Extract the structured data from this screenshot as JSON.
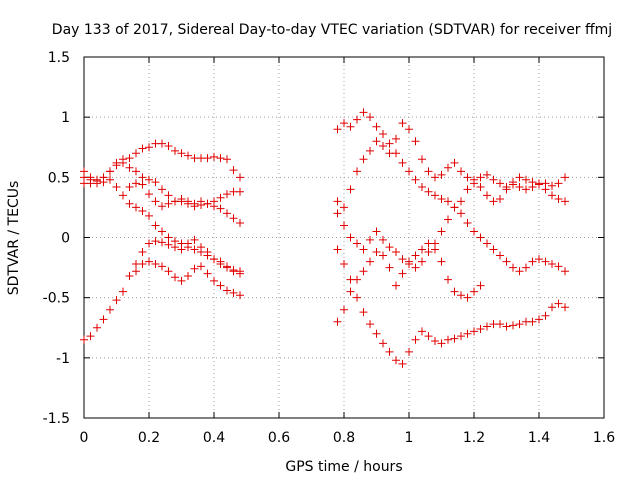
{
  "chart_data": {
    "type": "scatter",
    "title": "Day 133 of 2017, Sidereal Day-to-day VTEC variation (SDTVAR) for receiver ffmj",
    "xlabel": "GPS time / hours",
    "ylabel": "SDTVAR / TECUs",
    "xlim": [
      0,
      1.6
    ],
    "ylim": [
      -1.5,
      1.5
    ],
    "xticks": [
      0,
      0.2,
      0.4,
      0.6,
      0.8,
      1,
      1.2,
      1.4,
      1.6
    ],
    "xtick_labels": [
      "0",
      "0.2",
      "0.4",
      "0.6",
      "0.8",
      "1",
      "1.2",
      "1.4",
      "1.6"
    ],
    "yticks": [
      -1.5,
      -1,
      -0.5,
      0,
      0.5,
      1,
      1.5
    ],
    "ytick_labels": [
      "-1.5",
      "-1",
      "-0.5",
      "0",
      "0.5",
      "1",
      "1.5"
    ],
    "grid": true,
    "marker": "+",
    "color": "#e00000",
    "series": [
      {
        "name": "s1",
        "points": [
          [
            0.0,
            0.55
          ],
          [
            0.02,
            0.5
          ],
          [
            0.04,
            0.48
          ],
          [
            0.06,
            0.5
          ],
          [
            0.08,
            0.55
          ],
          [
            0.1,
            0.6
          ],
          [
            0.12,
            0.62
          ],
          [
            0.14,
            0.58
          ],
          [
            0.16,
            0.55
          ],
          [
            0.18,
            0.5
          ],
          [
            0.2,
            0.48
          ],
          [
            0.22,
            0.46
          ],
          [
            0.24,
            0.4
          ],
          [
            0.26,
            0.35
          ],
          [
            0.28,
            0.3
          ],
          [
            0.3,
            0.3
          ],
          [
            0.32,
            0.28
          ],
          [
            0.34,
            0.26
          ],
          [
            0.36,
            0.27
          ],
          [
            0.38,
            0.28
          ],
          [
            0.4,
            0.3
          ],
          [
            0.42,
            0.33
          ],
          [
            0.44,
            0.36
          ],
          [
            0.46,
            0.38
          ],
          [
            0.48,
            0.38
          ]
        ]
      },
      {
        "name": "s2",
        "points": [
          [
            0.0,
            0.45
          ],
          [
            0.02,
            0.45
          ],
          [
            0.04,
            0.47
          ],
          [
            0.06,
            0.5
          ],
          [
            0.08,
            0.55
          ],
          [
            0.1,
            0.62
          ],
          [
            0.12,
            0.65
          ],
          [
            0.14,
            0.66
          ],
          [
            0.16,
            0.7
          ],
          [
            0.18,
            0.74
          ],
          [
            0.2,
            0.75
          ],
          [
            0.22,
            0.78
          ],
          [
            0.24,
            0.78
          ],
          [
            0.26,
            0.76
          ],
          [
            0.28,
            0.72
          ],
          [
            0.3,
            0.7
          ],
          [
            0.32,
            0.68
          ],
          [
            0.34,
            0.66
          ],
          [
            0.36,
            0.66
          ],
          [
            0.38,
            0.66
          ],
          [
            0.4,
            0.67
          ],
          [
            0.42,
            0.66
          ],
          [
            0.44,
            0.65
          ],
          [
            0.46,
            0.56
          ],
          [
            0.48,
            0.5
          ]
        ]
      },
      {
        "name": "s3",
        "points": [
          [
            0.0,
            0.5
          ],
          [
            0.02,
            0.48
          ],
          [
            0.04,
            0.45
          ],
          [
            0.06,
            0.46
          ],
          [
            0.08,
            0.48
          ],
          [
            0.1,
            0.42
          ],
          [
            0.12,
            0.35
          ],
          [
            0.14,
            0.28
          ],
          [
            0.16,
            0.25
          ],
          [
            0.18,
            0.22
          ],
          [
            0.2,
            0.18
          ],
          [
            0.22,
            0.1
          ],
          [
            0.24,
            0.05
          ],
          [
            0.26,
            0.0
          ],
          [
            0.28,
            -0.03
          ],
          [
            0.3,
            -0.05
          ],
          [
            0.32,
            -0.08
          ],
          [
            0.34,
            -0.1
          ],
          [
            0.36,
            -0.12
          ],
          [
            0.38,
            -0.15
          ],
          [
            0.4,
            -0.18
          ],
          [
            0.42,
            -0.2
          ],
          [
            0.44,
            -0.24
          ],
          [
            0.46,
            -0.28
          ],
          [
            0.48,
            -0.3
          ]
        ]
      },
      {
        "name": "s4",
        "points": [
          [
            0.0,
            -0.85
          ],
          [
            0.02,
            -0.82
          ],
          [
            0.04,
            -0.75
          ],
          [
            0.06,
            -0.68
          ],
          [
            0.08,
            -0.6
          ],
          [
            0.1,
            -0.52
          ],
          [
            0.12,
            -0.45
          ],
          [
            0.14,
            -0.32
          ],
          [
            0.16,
            -0.22
          ],
          [
            0.18,
            -0.12
          ],
          [
            0.2,
            -0.05
          ],
          [
            0.22,
            -0.03
          ],
          [
            0.24,
            -0.04
          ],
          [
            0.26,
            -0.06
          ],
          [
            0.28,
            -0.08
          ],
          [
            0.3,
            -0.1
          ],
          [
            0.32,
            -0.05
          ],
          [
            0.34,
            -0.02
          ],
          [
            0.36,
            -0.08
          ],
          [
            0.38,
            -0.12
          ],
          [
            0.4,
            -0.18
          ],
          [
            0.42,
            -0.22
          ],
          [
            0.44,
            -0.25
          ],
          [
            0.46,
            -0.27
          ],
          [
            0.48,
            -0.28
          ]
        ]
      },
      {
        "name": "s5",
        "points": [
          [
            0.16,
            -0.28
          ],
          [
            0.18,
            -0.22
          ],
          [
            0.2,
            -0.2
          ],
          [
            0.22,
            -0.22
          ],
          [
            0.24,
            -0.24
          ],
          [
            0.26,
            -0.28
          ],
          [
            0.28,
            -0.33
          ],
          [
            0.3,
            -0.36
          ],
          [
            0.32,
            -0.32
          ],
          [
            0.34,
            -0.26
          ],
          [
            0.36,
            -0.24
          ],
          [
            0.38,
            -0.3
          ],
          [
            0.4,
            -0.36
          ],
          [
            0.42,
            -0.4
          ],
          [
            0.44,
            -0.44
          ],
          [
            0.46,
            -0.46
          ],
          [
            0.48,
            -0.48
          ]
        ]
      },
      {
        "name": "s6",
        "points": [
          [
            0.14,
            0.42
          ],
          [
            0.16,
            0.45
          ],
          [
            0.18,
            0.44
          ],
          [
            0.2,
            0.36
          ],
          [
            0.22,
            0.3
          ],
          [
            0.24,
            0.26
          ],
          [
            0.26,
            0.28
          ],
          [
            0.28,
            0.3
          ],
          [
            0.3,
            0.32
          ],
          [
            0.32,
            0.3
          ],
          [
            0.34,
            0.28
          ],
          [
            0.36,
            0.3
          ],
          [
            0.38,
            0.28
          ],
          [
            0.4,
            0.26
          ],
          [
            0.42,
            0.24
          ],
          [
            0.44,
            0.2
          ],
          [
            0.46,
            0.16
          ],
          [
            0.48,
            0.12
          ]
        ]
      },
      {
        "name": "s7",
        "points": [
          [
            0.78,
            0.9
          ],
          [
            0.8,
            0.95
          ],
          [
            0.82,
            0.92
          ],
          [
            0.84,
            0.98
          ],
          [
            0.86,
            1.04
          ],
          [
            0.88,
            1.0
          ],
          [
            0.9,
            0.92
          ],
          [
            0.92,
            0.86
          ],
          [
            0.94,
            0.78
          ],
          [
            0.96,
            0.7
          ],
          [
            0.98,
            0.62
          ],
          [
            1.0,
            0.55
          ],
          [
            1.02,
            0.48
          ],
          [
            1.04,
            0.42
          ],
          [
            1.06,
            0.38
          ],
          [
            1.08,
            0.35
          ],
          [
            1.1,
            0.32
          ],
          [
            1.12,
            0.3
          ],
          [
            1.14,
            0.25
          ],
          [
            1.16,
            0.2
          ],
          [
            1.18,
            0.12
          ],
          [
            1.2,
            0.05
          ],
          [
            1.22,
            0.0
          ],
          [
            1.24,
            -0.05
          ],
          [
            1.26,
            -0.1
          ],
          [
            1.28,
            -0.15
          ],
          [
            1.3,
            -0.2
          ],
          [
            1.32,
            -0.25
          ],
          [
            1.34,
            -0.28
          ],
          [
            1.36,
            -0.25
          ],
          [
            1.38,
            -0.2
          ],
          [
            1.4,
            -0.18
          ],
          [
            1.42,
            -0.2
          ],
          [
            1.44,
            -0.22
          ],
          [
            1.46,
            -0.24
          ],
          [
            1.48,
            -0.28
          ]
        ]
      },
      {
        "name": "s8",
        "points": [
          [
            0.78,
            0.3
          ],
          [
            0.8,
            0.25
          ],
          [
            0.82,
            0.4
          ],
          [
            0.84,
            0.55
          ],
          [
            0.86,
            0.65
          ],
          [
            0.88,
            0.72
          ],
          [
            0.9,
            0.8
          ],
          [
            0.92,
            0.76
          ],
          [
            0.94,
            0.7
          ],
          [
            0.96,
            0.82
          ],
          [
            0.98,
            0.95
          ],
          [
            1.0,
            0.9
          ],
          [
            1.02,
            0.8
          ],
          [
            1.04,
            0.65
          ],
          [
            1.06,
            0.55
          ],
          [
            1.08,
            0.5
          ],
          [
            1.1,
            0.52
          ],
          [
            1.12,
            0.58
          ],
          [
            1.14,
            0.62
          ],
          [
            1.16,
            0.55
          ],
          [
            1.18,
            0.5
          ],
          [
            1.2,
            0.48
          ],
          [
            1.22,
            0.5
          ],
          [
            1.24,
            0.52
          ],
          [
            1.26,
            0.48
          ],
          [
            1.28,
            0.45
          ],
          [
            1.3,
            0.42
          ],
          [
            1.32,
            0.46
          ],
          [
            1.34,
            0.5
          ],
          [
            1.36,
            0.48
          ],
          [
            1.38,
            0.46
          ],
          [
            1.4,
            0.44
          ],
          [
            1.42,
            0.45
          ],
          [
            1.44,
            0.43
          ],
          [
            1.46,
            0.45
          ],
          [
            1.48,
            0.5
          ]
        ]
      },
      {
        "name": "s9",
        "points": [
          [
            0.78,
            -0.1
          ],
          [
            0.8,
            -0.22
          ],
          [
            0.82,
            -0.35
          ],
          [
            0.84,
            -0.5
          ],
          [
            0.86,
            -0.62
          ],
          [
            0.88,
            -0.72
          ],
          [
            0.9,
            -0.8
          ],
          [
            0.92,
            -0.88
          ],
          [
            0.94,
            -0.95
          ],
          [
            0.96,
            -1.02
          ],
          [
            0.98,
            -1.05
          ],
          [
            1.0,
            -0.95
          ],
          [
            1.02,
            -0.85
          ],
          [
            1.04,
            -0.78
          ],
          [
            1.06,
            -0.82
          ],
          [
            1.08,
            -0.86
          ],
          [
            1.1,
            -0.88
          ],
          [
            1.12,
            -0.85
          ],
          [
            1.14,
            -0.84
          ],
          [
            1.16,
            -0.82
          ],
          [
            1.18,
            -0.8
          ],
          [
            1.2,
            -0.78
          ],
          [
            1.22,
            -0.76
          ],
          [
            1.24,
            -0.74
          ],
          [
            1.26,
            -0.72
          ],
          [
            1.28,
            -0.72
          ],
          [
            1.3,
            -0.74
          ],
          [
            1.32,
            -0.73
          ],
          [
            1.34,
            -0.72
          ],
          [
            1.36,
            -0.7
          ],
          [
            1.38,
            -0.7
          ],
          [
            1.4,
            -0.68
          ],
          [
            1.42,
            -0.65
          ],
          [
            1.44,
            -0.58
          ],
          [
            1.46,
            -0.55
          ],
          [
            1.48,
            -0.58
          ]
        ]
      },
      {
        "name": "s10",
        "points": [
          [
            0.78,
            -0.7
          ],
          [
            0.8,
            -0.6
          ],
          [
            0.82,
            -0.45
          ],
          [
            0.84,
            -0.35
          ],
          [
            0.86,
            -0.28
          ],
          [
            0.88,
            -0.2
          ],
          [
            0.9,
            -0.12
          ],
          [
            0.92,
            -0.15
          ],
          [
            0.94,
            -0.25
          ],
          [
            0.96,
            -0.4
          ],
          [
            0.98,
            -0.3
          ],
          [
            1.0,
            -0.2
          ],
          [
            1.02,
            -0.15
          ],
          [
            1.04,
            -0.1
          ],
          [
            1.06,
            -0.05
          ],
          [
            1.08,
            -0.1
          ],
          [
            1.1,
            -0.2
          ],
          [
            1.12,
            -0.35
          ],
          [
            1.14,
            -0.45
          ],
          [
            1.16,
            -0.48
          ],
          [
            1.18,
            -0.5
          ],
          [
            1.2,
            -0.45
          ],
          [
            1.22,
            -0.4
          ]
        ]
      },
      {
        "name": "s11",
        "points": [
          [
            0.78,
            0.2
          ],
          [
            0.8,
            0.1
          ],
          [
            0.82,
            0.0
          ],
          [
            0.84,
            -0.05
          ],
          [
            0.86,
            -0.1
          ],
          [
            0.88,
            -0.02
          ],
          [
            0.9,
            0.05
          ],
          [
            0.92,
            -0.02
          ],
          [
            0.94,
            -0.08
          ],
          [
            0.96,
            -0.12
          ],
          [
            0.98,
            -0.18
          ],
          [
            1.0,
            -0.22
          ],
          [
            1.02,
            -0.25
          ],
          [
            1.04,
            -0.2
          ],
          [
            1.06,
            -0.12
          ],
          [
            1.08,
            -0.05
          ],
          [
            1.1,
            0.05
          ],
          [
            1.12,
            0.15
          ],
          [
            1.14,
            0.25
          ],
          [
            1.16,
            0.3
          ],
          [
            1.18,
            0.4
          ],
          [
            1.2,
            0.45
          ],
          [
            1.22,
            0.42
          ],
          [
            1.24,
            0.35
          ],
          [
            1.26,
            0.3
          ],
          [
            1.28,
            0.32
          ],
          [
            1.3,
            0.4
          ],
          [
            1.32,
            0.44
          ],
          [
            1.34,
            0.42
          ],
          [
            1.36,
            0.4
          ],
          [
            1.38,
            0.42
          ],
          [
            1.4,
            0.45
          ],
          [
            1.42,
            0.4
          ],
          [
            1.44,
            0.35
          ],
          [
            1.46,
            0.32
          ],
          [
            1.48,
            0.3
          ]
        ]
      }
    ]
  }
}
